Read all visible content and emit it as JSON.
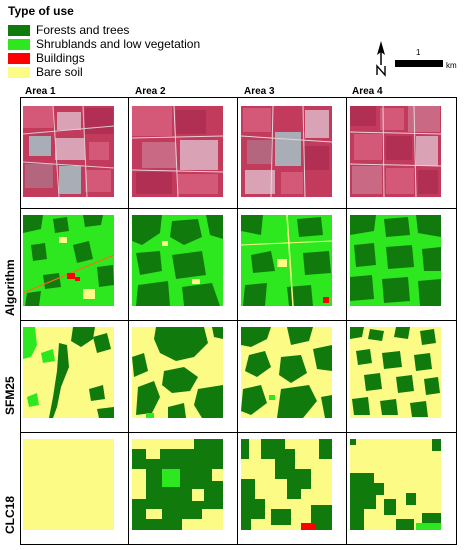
{
  "legend": {
    "title": "Type of use",
    "items": [
      {
        "label": "Forests and trees",
        "color": "#117a0d"
      },
      {
        "label": "Shrublands and low vegetation",
        "color": "#2ee81f"
      },
      {
        "label": "Buildings",
        "color": "#ff0000"
      },
      {
        "label": "Bare soil",
        "color": "#fbfb86"
      }
    ]
  },
  "scale": {
    "value": "1",
    "unit": "km"
  },
  "areas": [
    "Area 1",
    "Area 2",
    "Area 3",
    "Area 4"
  ],
  "rows": [
    "",
    "Algorithm",
    "SFM25",
    "CLC18"
  ],
  "colors": {
    "forest": "#117a0d",
    "shrub": "#2ee81f",
    "building": "#ff0000",
    "soil": "#fbfb86",
    "satellite_base": "#c23a5c",
    "satellite_light": "#d9a2b5",
    "satellite_gray": "#a9adb6"
  }
}
